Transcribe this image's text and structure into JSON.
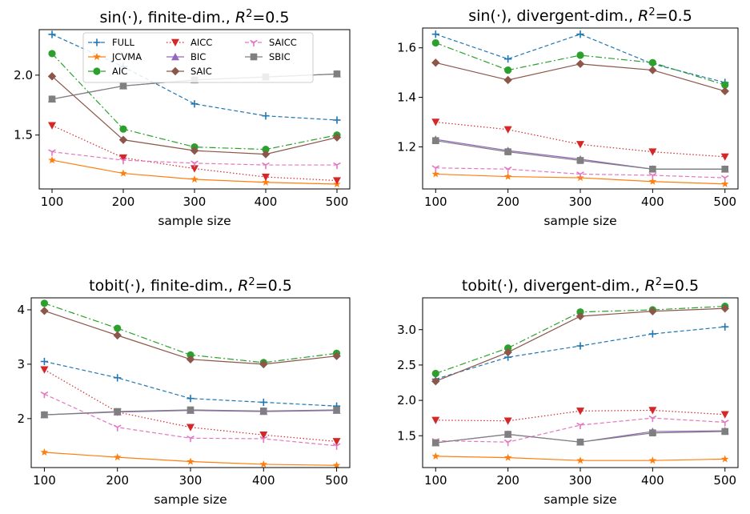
{
  "chart_data": [
    {
      "type": "line",
      "title": "sin(·), finite-dim., R²=0.5",
      "title_parts": {
        "prefix": "sin(·), finite-dim., ",
        "R": "R",
        "sup": "2",
        "suffix": "=0.5"
      },
      "xlabel": "sample size",
      "ylabel": "",
      "x": [
        100,
        200,
        300,
        400,
        500
      ],
      "xticks": [
        "100",
        "200",
        "300",
        "400",
        "500"
      ],
      "yticks": [
        "1.5",
        "2.0"
      ],
      "ytick_values": [
        1.5,
        2.0
      ],
      "xlim": [
        82,
        518
      ],
      "ylim": [
        1.05,
        2.38
      ],
      "legend": "top",
      "series": [
        {
          "name": "FULL",
          "values": [
            2.34,
            2.07,
            1.76,
            1.66,
            1.625
          ]
        },
        {
          "name": "JCVMA",
          "values": [
            1.29,
            1.18,
            1.13,
            1.105,
            1.09
          ]
        },
        {
          "name": "AIC",
          "values": [
            2.18,
            1.55,
            1.4,
            1.38,
            1.5
          ]
        },
        {
          "name": "AICC",
          "values": [
            1.58,
            1.31,
            1.22,
            1.15,
            1.12
          ]
        },
        {
          "name": "BIC",
          "values": [
            1.8,
            1.91,
            1.96,
            1.985,
            2.01
          ]
        },
        {
          "name": "SAIC",
          "values": [
            1.99,
            1.46,
            1.37,
            1.34,
            1.48
          ]
        },
        {
          "name": "SAICC",
          "values": [
            1.36,
            1.29,
            1.265,
            1.25,
            1.25
          ]
        },
        {
          "name": "SBIC",
          "values": [
            1.8,
            1.91,
            1.96,
            1.985,
            2.01
          ]
        }
      ]
    },
    {
      "type": "line",
      "title": "sin(·), divergent-dim., R²=0.5",
      "title_parts": {
        "prefix": "sin(·), divergent-dim., ",
        "R": "R",
        "sup": "2",
        "suffix": "=0.5"
      },
      "xlabel": "sample size",
      "ylabel": "",
      "x": [
        100,
        200,
        300,
        400,
        500
      ],
      "xticks": [
        "100",
        "200",
        "300",
        "400",
        "500"
      ],
      "yticks": [
        "1.2",
        "1.4",
        "1.6"
      ],
      "ytick_values": [
        1.2,
        1.4,
        1.6
      ],
      "xlim": [
        82,
        518
      ],
      "ylim": [
        1.03,
        1.68
      ],
      "series": [
        {
          "name": "FULL",
          "values": [
            1.655,
            1.555,
            1.655,
            1.535,
            1.46
          ]
        },
        {
          "name": "JCVMA",
          "values": [
            1.09,
            1.08,
            1.075,
            1.06,
            1.05
          ]
        },
        {
          "name": "AIC",
          "values": [
            1.62,
            1.51,
            1.57,
            1.54,
            1.45
          ]
        },
        {
          "name": "AICC",
          "values": [
            1.3,
            1.27,
            1.21,
            1.18,
            1.16
          ]
        },
        {
          "name": "BIC",
          "values": [
            1.23,
            1.185,
            1.15,
            1.11,
            1.11
          ]
        },
        {
          "name": "SAIC",
          "values": [
            1.54,
            1.47,
            1.535,
            1.51,
            1.425
          ]
        },
        {
          "name": "SAICC",
          "values": [
            1.115,
            1.11,
            1.09,
            1.085,
            1.075
          ]
        },
        {
          "name": "SBIC",
          "values": [
            1.225,
            1.18,
            1.145,
            1.11,
            1.11
          ]
        }
      ]
    },
    {
      "type": "line",
      "title": "tobit(·), finite-dim., R²=0.5",
      "title_parts": {
        "prefix": "tobit(·), finite-dim., ",
        "R": "R",
        "sup": "2",
        "suffix": "=0.5"
      },
      "xlabel": "sample size",
      "ylabel": "",
      "x": [
        100,
        200,
        300,
        400,
        500
      ],
      "xticks": [
        "100",
        "200",
        "300",
        "400",
        "500"
      ],
      "yticks": [
        "2",
        "3",
        "4"
      ],
      "ytick_values": [
        2,
        3,
        4
      ],
      "xlim": [
        82,
        518
      ],
      "ylim": [
        1.1,
        4.22
      ],
      "series": [
        {
          "name": "FULL",
          "values": [
            3.05,
            2.75,
            2.37,
            2.3,
            2.23
          ]
        },
        {
          "name": "JCVMA",
          "values": [
            1.38,
            1.29,
            1.21,
            1.16,
            1.14
          ]
        },
        {
          "name": "AIC",
          "values": [
            4.12,
            3.66,
            3.17,
            3.03,
            3.2
          ]
        },
        {
          "name": "AICC",
          "values": [
            2.9,
            2.12,
            1.84,
            1.7,
            1.58
          ]
        },
        {
          "name": "BIC",
          "values": [
            2.07,
            2.12,
            2.15,
            2.13,
            2.15
          ]
        },
        {
          "name": "SAIC",
          "values": [
            3.98,
            3.53,
            3.09,
            3.0,
            3.15
          ]
        },
        {
          "name": "SAICC",
          "values": [
            2.45,
            1.84,
            1.64,
            1.63,
            1.5
          ]
        },
        {
          "name": "SBIC",
          "values": [
            2.07,
            2.13,
            2.16,
            2.14,
            2.16
          ]
        }
      ]
    },
    {
      "type": "line",
      "title": "tobit(·), divergent-dim., R²=0.5",
      "title_parts": {
        "prefix": "tobit(·), divergent-dim., ",
        "R": "R",
        "sup": "2",
        "suffix": "=0.5"
      },
      "xlabel": "sample size",
      "ylabel": "",
      "x": [
        100,
        200,
        300,
        400,
        500
      ],
      "xticks": [
        "100",
        "200",
        "300",
        "400",
        "500"
      ],
      "yticks": [
        "1.5",
        "2.0",
        "2.5",
        "3.0"
      ],
      "ytick_values": [
        1.5,
        2.0,
        2.5,
        3.0
      ],
      "xlim": [
        82,
        518
      ],
      "ylim": [
        1.05,
        3.45
      ],
      "series": [
        {
          "name": "FULL",
          "values": [
            2.3,
            2.61,
            2.77,
            2.94,
            3.04
          ]
        },
        {
          "name": "JCVMA",
          "values": [
            1.21,
            1.19,
            1.15,
            1.15,
            1.17
          ]
        },
        {
          "name": "AIC",
          "values": [
            2.38,
            2.74,
            3.25,
            3.28,
            3.33
          ]
        },
        {
          "name": "AICC",
          "values": [
            1.72,
            1.71,
            1.85,
            1.86,
            1.8
          ]
        },
        {
          "name": "BIC",
          "values": [
            1.4,
            1.52,
            1.41,
            1.56,
            1.57
          ]
        },
        {
          "name": "SAIC",
          "values": [
            2.27,
            2.68,
            3.19,
            3.26,
            3.3
          ]
        },
        {
          "name": "SAICC",
          "values": [
            1.43,
            1.41,
            1.65,
            1.75,
            1.69
          ]
        },
        {
          "name": "SBIC",
          "values": [
            1.4,
            1.52,
            1.41,
            1.54,
            1.56
          ]
        }
      ]
    }
  ],
  "legend_labels": [
    "FULL",
    "JCVMA",
    "AIC",
    "AICC",
    "BIC",
    "SAIC",
    "SAICC",
    "SBIC"
  ],
  "series_styles": {
    "FULL": {
      "color": "#1f77b4",
      "marker": "plus",
      "dash": "5,3"
    },
    "JCVMA": {
      "color": "#ff7f0e",
      "marker": "star",
      "dash": ""
    },
    "AIC": {
      "color": "#2ca02c",
      "marker": "circle",
      "dash": "8,3,2,3"
    },
    "AICC": {
      "color": "#d62728",
      "marker": "triangle-down",
      "dash": "1.5,2.5"
    },
    "BIC": {
      "color": "#9467bd",
      "marker": "triangle-up",
      "dash": ""
    },
    "SAIC": {
      "color": "#8c564b",
      "marker": "diamond",
      "dash": ""
    },
    "SAICC": {
      "color": "#e377c2",
      "marker": "tri-down",
      "dash": "5,3"
    },
    "SBIC": {
      "color": "#7f7f7f",
      "marker": "square",
      "dash": ""
    }
  }
}
